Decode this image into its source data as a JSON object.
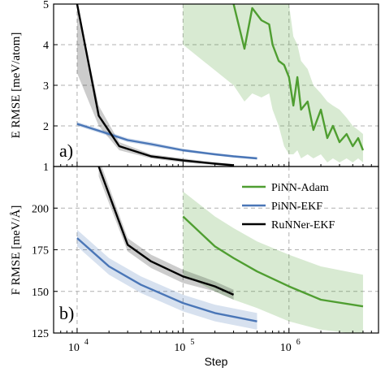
{
  "chart_data": [
    {
      "type": "line",
      "panel_label": "a)",
      "ylabel": "E RMSE [meV/atom]",
      "xscale": "log",
      "xlim": [
        6000,
        7000000
      ],
      "ylim": [
        1,
        5
      ],
      "yticks": [
        1,
        2,
        3,
        4,
        5
      ],
      "grid": true,
      "series": [
        {
          "name": "PiNN-Adam",
          "color": "#4f9e31",
          "x": [
            100000,
            300000,
            380000,
            450000,
            550000,
            650000,
            700000,
            800000,
            900000,
            1000000,
            1100000,
            1200000,
            1300000,
            1500000,
            1700000,
            2000000,
            2300000,
            2600000,
            3000000,
            3500000,
            4000000,
            4500000,
            5000000
          ],
          "y": [
            8.5,
            5.0,
            3.9,
            4.9,
            4.6,
            4.5,
            4.0,
            3.6,
            3.5,
            3.2,
            2.5,
            3.2,
            2.4,
            2.6,
            1.9,
            2.4,
            1.7,
            2.0,
            1.6,
            1.8,
            1.5,
            1.7,
            1.4
          ],
          "band_lower": [
            4.0,
            3.0,
            2.6,
            2.8,
            2.7,
            2.8,
            2.4,
            2.0,
            1.5,
            1.3,
            1.3,
            1.4,
            1.2,
            1.3,
            1.2,
            1.3,
            1.1,
            1.2,
            1.1,
            1.2,
            1.1,
            1.2,
            1.1
          ],
          "band_upper": [
            5.0,
            5.0,
            5.0,
            5.0,
            5.0,
            5.0,
            5.0,
            5.0,
            5.0,
            5.0,
            4.2,
            4.0,
            3.6,
            3.4,
            3.0,
            2.8,
            2.6,
            2.5,
            2.4,
            2.2,
            2.0,
            1.9,
            1.8
          ]
        },
        {
          "name": "PiNN-EKF",
          "color": "#4a76b7",
          "x": [
            10000,
            20000,
            30000,
            50000,
            100000,
            200000,
            300000,
            500000
          ],
          "y": [
            2.05,
            1.8,
            1.65,
            1.55,
            1.4,
            1.3,
            1.25,
            1.2
          ],
          "band_lower": [
            2.0,
            1.75,
            1.6,
            1.5,
            1.36,
            1.27,
            1.22,
            1.17
          ],
          "band_upper": [
            2.1,
            1.85,
            1.7,
            1.6,
            1.44,
            1.33,
            1.28,
            1.23
          ]
        },
        {
          "name": "RuNNer-EKF",
          "color": "#000000",
          "x": [
            10000,
            16000,
            25000,
            50000,
            100000,
            200000,
            300000
          ],
          "y": [
            5.0,
            2.25,
            1.5,
            1.25,
            1.15,
            1.07,
            1.03
          ],
          "band_lower": [
            3.3,
            2.0,
            1.4,
            1.2,
            1.1,
            1.04,
            1.01
          ],
          "band_upper": [
            5.0,
            2.5,
            1.6,
            1.3,
            1.2,
            1.1,
            1.06
          ]
        }
      ]
    },
    {
      "type": "line",
      "panel_label": "b)",
      "xlabel": "Step",
      "ylabel": "F RMSE [meV/Å]",
      "xscale": "log",
      "xlim": [
        6000,
        7000000
      ],
      "ylim": [
        125,
        225
      ],
      "yticks": [
        125,
        150,
        175,
        200
      ],
      "xticks": [
        10000,
        100000,
        1000000
      ],
      "xtick_labels": [
        [
          "10",
          "4"
        ],
        [
          "10",
          "5"
        ],
        [
          "10",
          "6"
        ]
      ],
      "grid": true,
      "legend": {
        "position": "upper-right",
        "entries": [
          "PiNN-Adam",
          "PiNN-EKF",
          "RuNNer-EKF"
        ]
      },
      "series": [
        {
          "name": "PiNN-Adam",
          "color": "#4f9e31",
          "x": [
            100000,
            200000,
            300000,
            500000,
            1000000,
            2000000,
            5000000
          ],
          "y": [
            195,
            177,
            170,
            162,
            153,
            145,
            141
          ],
          "band_lower": [
            160,
            150,
            145,
            140,
            132,
            127,
            124
          ],
          "band_upper": [
            210,
            195,
            188,
            180,
            172,
            165,
            160
          ]
        },
        {
          "name": "PiNN-EKF",
          "color": "#4a76b7",
          "x": [
            10000,
            20000,
            40000,
            100000,
            200000,
            500000
          ],
          "y": [
            182,
            165,
            154,
            143,
            137,
            132
          ],
          "band_lower": [
            177,
            160,
            149,
            138,
            132,
            127
          ],
          "band_upper": [
            187,
            170,
            159,
            148,
            142,
            137
          ]
        },
        {
          "name": "RuNNer-EKF",
          "color": "#000000",
          "x": [
            16000,
            30000,
            50000,
            100000,
            200000,
            300000
          ],
          "y": [
            225,
            178,
            168,
            159,
            153,
            148
          ],
          "band_lower": [
            219,
            174,
            164,
            155,
            150,
            145
          ],
          "band_upper": [
            230,
            182,
            172,
            163,
            156,
            151
          ]
        }
      ]
    }
  ]
}
